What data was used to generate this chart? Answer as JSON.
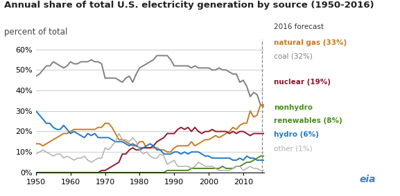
{
  "title": "Annual share of total U.S. electricity generation by source (1950-2016)",
  "subtitle": "percent of total",
  "years": [
    1950,
    1951,
    1952,
    1953,
    1954,
    1955,
    1956,
    1957,
    1958,
    1959,
    1960,
    1961,
    1962,
    1963,
    1964,
    1965,
    1966,
    1967,
    1968,
    1969,
    1970,
    1971,
    1972,
    1973,
    1974,
    1975,
    1976,
    1977,
    1978,
    1979,
    1980,
    1981,
    1982,
    1983,
    1984,
    1985,
    1986,
    1987,
    1988,
    1989,
    1990,
    1991,
    1992,
    1993,
    1994,
    1995,
    1996,
    1997,
    1998,
    1999,
    2000,
    2001,
    2002,
    2003,
    2004,
    2005,
    2006,
    2007,
    2008,
    2009,
    2010,
    2011,
    2012,
    2013,
    2014,
    2015,
    2016
  ],
  "coal": [
    47,
    48,
    50,
    52,
    52,
    54,
    53,
    52,
    51,
    52,
    54,
    53,
    53,
    54,
    54,
    54,
    55,
    54,
    54,
    53,
    46,
    46,
    46,
    46,
    45,
    44,
    46,
    47,
    44,
    48,
    51,
    52,
    53,
    54,
    55,
    57,
    57,
    57,
    57,
    55,
    52,
    52,
    52,
    52,
    52,
    51,
    52,
    51,
    51,
    51,
    51,
    50,
    50,
    51,
    50,
    50,
    49,
    48,
    48,
    44,
    45,
    42,
    37,
    39,
    38,
    33,
    32
  ],
  "natural_gas": [
    14,
    14,
    13,
    14,
    15,
    16,
    17,
    18,
    19,
    19,
    20,
    21,
    21,
    21,
    21,
    21,
    21,
    21,
    22,
    22,
    24,
    24,
    22,
    19,
    16,
    16,
    15,
    14,
    13,
    13,
    15,
    15,
    12,
    12,
    12,
    12,
    11,
    11,
    10,
    10,
    12,
    13,
    13,
    13,
    13,
    15,
    13,
    14,
    15,
    16,
    16,
    17,
    18,
    17,
    18,
    19,
    20,
    22,
    21,
    23,
    24,
    24,
    30,
    27,
    28,
    33,
    33
  ],
  "nuclear": [
    0,
    0,
    0,
    0,
    0,
    0,
    0,
    0,
    0,
    0,
    0,
    0,
    0,
    0,
    0,
    0,
    0,
    0,
    0,
    1,
    1,
    2,
    3,
    4,
    5,
    9,
    9,
    11,
    12,
    11,
    11,
    12,
    12,
    12,
    13,
    15,
    16,
    17,
    19,
    19,
    19,
    21,
    22,
    21,
    22,
    20,
    22,
    20,
    19,
    20,
    20,
    21,
    20,
    20,
    20,
    20,
    19,
    20,
    19,
    20,
    20,
    19,
    18,
    19,
    19,
    19,
    19
  ],
  "hydro": [
    30,
    28,
    26,
    24,
    24,
    22,
    21,
    21,
    23,
    21,
    19,
    20,
    19,
    18,
    17,
    19,
    18,
    19,
    17,
    17,
    17,
    17,
    16,
    15,
    15,
    15,
    14,
    13,
    14,
    13,
    12,
    12,
    13,
    14,
    13,
    11,
    11,
    9,
    9,
    9,
    10,
    10,
    9,
    10,
    9,
    10,
    10,
    10,
    9,
    8,
    8,
    7,
    7,
    7,
    7,
    7,
    7,
    6,
    6,
    7,
    6,
    8,
    7,
    7,
    6,
    6,
    6
  ],
  "nonhydro_renewables": [
    0,
    0,
    0,
    0,
    0,
    0,
    0,
    0,
    0,
    0,
    0,
    0,
    0,
    0,
    0,
    0,
    0,
    0,
    0,
    0,
    0,
    0,
    0,
    0,
    0,
    0,
    0,
    0,
    0,
    0,
    0,
    0,
    0,
    0,
    0,
    0,
    0,
    0,
    1,
    1,
    1,
    1,
    1,
    1,
    1,
    2,
    2,
    2,
    2,
    2,
    2,
    2,
    2,
    2,
    3,
    2,
    2,
    2,
    3,
    3,
    4,
    5,
    5,
    6,
    7,
    8,
    8
  ],
  "other": [
    9,
    10,
    11,
    10,
    9,
    8,
    9,
    9,
    7,
    8,
    7,
    6,
    7,
    7,
    8,
    6,
    5,
    6,
    7,
    7,
    12,
    11,
    13,
    15,
    19,
    16,
    16,
    15,
    17,
    15,
    11,
    9,
    10,
    8,
    7,
    7,
    9,
    8,
    4,
    5,
    6,
    3,
    3,
    3,
    3,
    2,
    3,
    5,
    4,
    3,
    3,
    3,
    2,
    1,
    1,
    1,
    1,
    2,
    3,
    3,
    1,
    2,
    3,
    2,
    2,
    1,
    1
  ],
  "colors": {
    "coal": "#808080",
    "natural_gas": "#c47d22",
    "nuclear": "#8b1a2e",
    "hydro": "#1f78c8",
    "nonhydro_renewables": "#4a8c1c",
    "other": "#b0b0b0"
  },
  "forecast_year": 2015.5,
  "ylim": [
    0,
    65
  ],
  "yticks": [
    0,
    10,
    20,
    30,
    40,
    50,
    60
  ],
  "xlim": [
    1950,
    2016
  ],
  "xticks": [
    1950,
    1960,
    1970,
    1980,
    1990,
    2000,
    2010
  ],
  "bg_color": "#ffffff",
  "grid_color": "#cccccc",
  "title_fontsize": 9.5,
  "subtitle_fontsize": 8.5,
  "tick_fontsize": 8
}
